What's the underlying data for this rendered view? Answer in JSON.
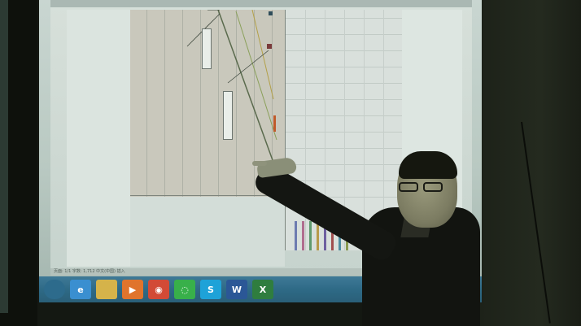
{
  "photo": {
    "subject": "presenter-pointing-at-projected-schedule",
    "window_title": "",
    "status_text": "页面: 1/1    字数: 1,712    中文(中国)    插入",
    "taskbar": {
      "buttons": [
        {
          "icon": "windows-start-icon",
          "color": "#2d6b8c"
        },
        {
          "icon": "ie-browser-icon",
          "color": "#3a8fd0"
        },
        {
          "icon": "folder-icon",
          "color": "#d5b34a"
        },
        {
          "icon": "media-player-icon",
          "color": "#e0742c"
        },
        {
          "icon": "chrome-icon",
          "color": "#d24a36"
        },
        {
          "icon": "wechat-icon",
          "color": "#38b04a"
        },
        {
          "icon": "skype-icon",
          "color": "#1ea2d8"
        },
        {
          "icon": "word-icon",
          "color": "#2b5796"
        },
        {
          "icon": "excel-icon",
          "color": "#2f7d3f"
        }
      ],
      "button_labels": [
        "",
        "e",
        "",
        "▶",
        "◉",
        "◌",
        "S",
        "W",
        "X"
      ]
    },
    "colors": {
      "screen": "#c9d6d1",
      "gantt": "#c9c8bc",
      "taskbar": "#2e6a86",
      "presenter": "#121410"
    }
  }
}
